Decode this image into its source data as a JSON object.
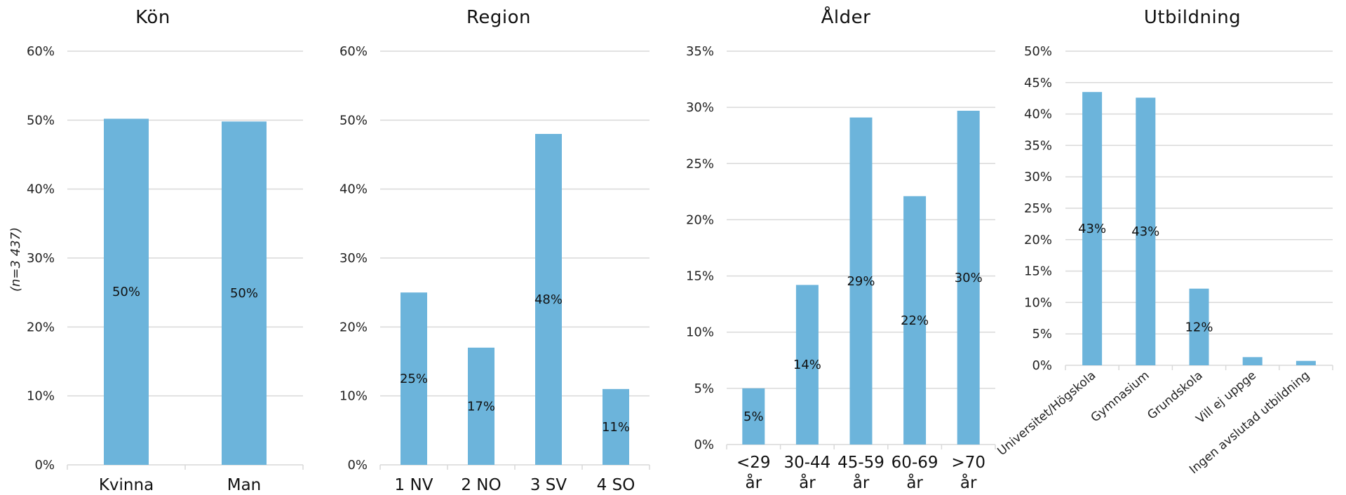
{
  "side_note": "(n=3 437)",
  "bar_color": "#6CB4DB",
  "chart_data": [
    {
      "type": "bar",
      "title": "Kön",
      "categories": [
        "Kvinna",
        "Man"
      ],
      "values": [
        50.2,
        49.8
      ],
      "data_labels": [
        "50%",
        "50%"
      ],
      "ylim": [
        0,
        60
      ],
      "yticks": [
        0,
        10,
        20,
        30,
        40,
        50,
        60
      ],
      "ytick_labels": [
        "0%",
        "10%",
        "20%",
        "30%",
        "40%",
        "50%",
        "60%"
      ],
      "grid": true
    },
    {
      "type": "bar",
      "title": "Region",
      "categories": [
        "1 NV",
        "2 NO",
        "3 SV",
        "4 SO"
      ],
      "values": [
        25,
        17,
        48,
        11
      ],
      "data_labels": [
        "25%",
        "17%",
        "48%",
        "11%"
      ],
      "ylim": [
        0,
        60
      ],
      "yticks": [
        0,
        10,
        20,
        30,
        40,
        50,
        60
      ],
      "ytick_labels": [
        "0%",
        "10%",
        "20%",
        "30%",
        "40%",
        "50%",
        "60%"
      ],
      "grid": true
    },
    {
      "type": "bar",
      "title": "Ålder",
      "categories": [
        "<29 år",
        "30-44 år",
        "45-59 år",
        "60-69 år",
        ">70 år"
      ],
      "category_lines": [
        [
          "<29",
          "år"
        ],
        [
          "30-44",
          "år"
        ],
        [
          "45-59",
          "år"
        ],
        [
          "60-69",
          "år"
        ],
        [
          ">70",
          "år"
        ]
      ],
      "values": [
        5,
        14.2,
        29.1,
        22.1,
        29.7
      ],
      "data_labels": [
        "5%",
        "14%",
        "29%",
        "22%",
        "30%"
      ],
      "ylim": [
        0,
        35
      ],
      "yticks": [
        0,
        5,
        10,
        15,
        20,
        25,
        30,
        35
      ],
      "ytick_labels": [
        "0%",
        "5%",
        "10%",
        "15%",
        "20%",
        "25%",
        "30%",
        "35%"
      ],
      "grid": true
    },
    {
      "type": "bar",
      "title": "Utbildning",
      "categories": [
        "Universitet/Högskola",
        "Gymnasium",
        "Grundskola",
        "Vill ej uppge",
        "Ingen avslutad utbildning"
      ],
      "values": [
        43.5,
        42.6,
        12.2,
        1.3,
        0.7
      ],
      "data_labels": [
        "43%",
        "43%",
        "12%",
        "",
        ""
      ],
      "ylim": [
        0,
        50
      ],
      "yticks": [
        0,
        5,
        10,
        15,
        20,
        25,
        30,
        35,
        40,
        45,
        50
      ],
      "ytick_labels": [
        "0%",
        "5%",
        "10%",
        "15%",
        "20%",
        "25%",
        "30%",
        "35%",
        "40%",
        "45%",
        "50%"
      ],
      "grid": true
    }
  ]
}
